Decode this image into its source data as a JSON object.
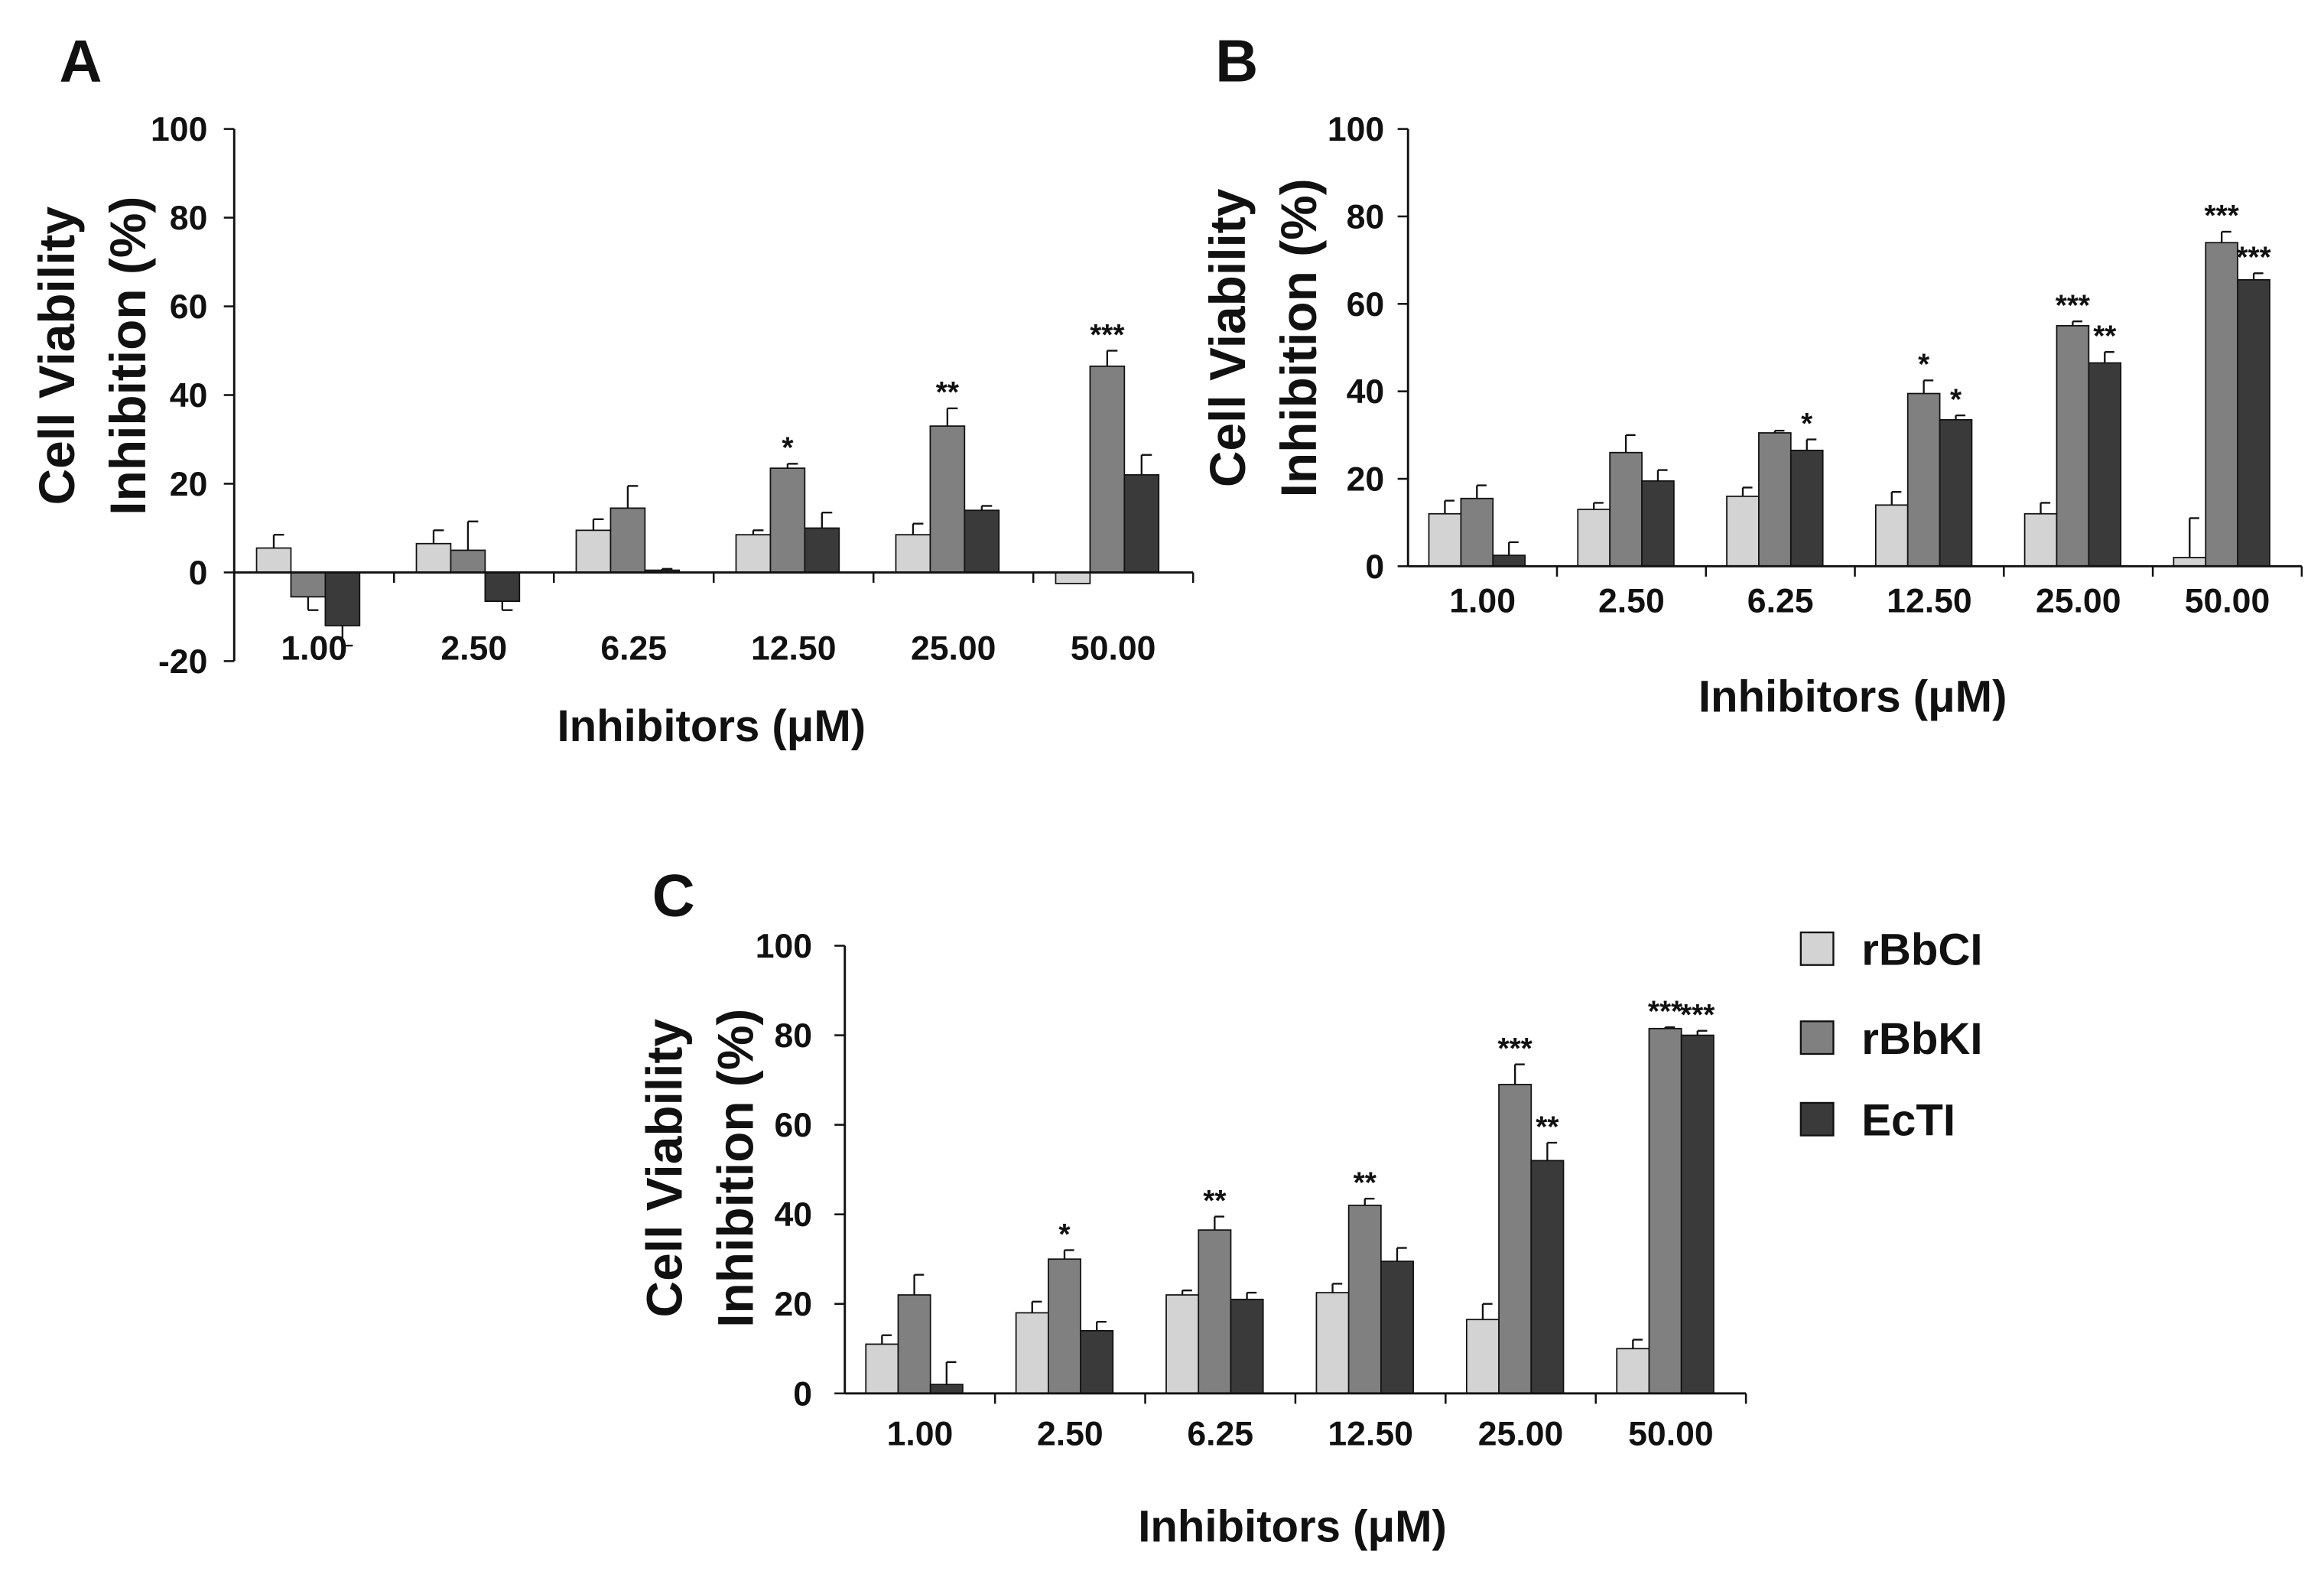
{
  "colors": {
    "rBbCI": "#d3d3d3",
    "rBbKI": "#808080",
    "EcTI": "#3a3a3a",
    "axis": "#111111"
  },
  "legend": {
    "items": [
      {
        "label": "rBbCI",
        "color": "#d3d3d3"
      },
      {
        "label": "rBbKI",
        "color": "#808080"
      },
      {
        "label": "EcTI",
        "color": "#3a3a3a"
      }
    ]
  },
  "chart_data": [
    {
      "panel": "A",
      "type": "bar",
      "ylabel_lines": [
        "Cell Viability",
        "Inhibition (%)"
      ],
      "xlabel": "Inhibitors (μM)",
      "categories": [
        "1.00",
        "2.50",
        "6.25",
        "12.50",
        "25.00",
        "50.00"
      ],
      "ylim": [
        -20,
        100
      ],
      "yticks": [
        -20,
        0,
        20,
        40,
        60,
        80,
        100
      ],
      "series": [
        {
          "name": "rBbCI",
          "values": [
            5.5,
            6.5,
            9.5,
            8.5,
            8.5,
            -2.5
          ],
          "errors": [
            3,
            3,
            2.5,
            1,
            2.5,
            0
          ],
          "sig": [
            "",
            "",
            "",
            "",
            "",
            ""
          ]
        },
        {
          "name": "rBbKI",
          "values": [
            -5.5,
            5,
            14.5,
            23.5,
            33,
            46.5
          ],
          "errors": [
            3,
            6.5,
            5,
            1,
            4,
            3.5
          ],
          "sig": [
            "",
            "",
            "",
            "*",
            "**",
            "***"
          ]
        },
        {
          "name": "EcTI",
          "values": [
            -12,
            -6.5,
            0.5,
            10,
            14,
            22
          ],
          "errors": [
            4.5,
            2,
            0.3,
            3.5,
            1,
            4.5
          ],
          "sig": [
            "",
            "",
            "",
            "",
            "",
            ""
          ]
        }
      ]
    },
    {
      "panel": "B",
      "type": "bar",
      "ylabel_lines": [
        "Cell Viability",
        "Inhibition (%)"
      ],
      "xlabel": "Inhibitors (μM)",
      "categories": [
        "1.00",
        "2.50",
        "6.25",
        "12.50",
        "25.00",
        "50.00"
      ],
      "ylim": [
        0,
        100
      ],
      "yticks": [
        0,
        20,
        40,
        60,
        80,
        100
      ],
      "series": [
        {
          "name": "rBbCI",
          "values": [
            12,
            13,
            16,
            14,
            12,
            2
          ],
          "errors": [
            3,
            1.5,
            2,
            3,
            2.5,
            9
          ],
          "sig": [
            "",
            "",
            "",
            "",
            "",
            ""
          ]
        },
        {
          "name": "rBbKI",
          "values": [
            15.5,
            26,
            30.5,
            39.5,
            55,
            74
          ],
          "errors": [
            3,
            4,
            0.5,
            3,
            1,
            2.5
          ],
          "sig": [
            "",
            "",
            "",
            "*",
            "***",
            "***"
          ]
        },
        {
          "name": "EcTI",
          "values": [
            2.5,
            19.5,
            26.5,
            33.5,
            46.5,
            65.5
          ],
          "errors": [
            3,
            2.5,
            2.5,
            1,
            2.5,
            1.5
          ],
          "sig": [
            "",
            "",
            "*",
            "*",
            "**",
            "***"
          ]
        }
      ]
    },
    {
      "panel": "C",
      "type": "bar",
      "ylabel_lines": [
        "Cell Viability",
        "Inhibition (%)"
      ],
      "xlabel": "Inhibitors (μM)",
      "categories": [
        "1.00",
        "2.50",
        "6.25",
        "12.50",
        "25.00",
        "50.00"
      ],
      "ylim": [
        0,
        100
      ],
      "yticks": [
        0,
        20,
        40,
        60,
        80,
        100
      ],
      "series": [
        {
          "name": "rBbCI",
          "values": [
            11,
            18,
            22,
            22.5,
            16.5,
            10
          ],
          "errors": [
            2,
            2.5,
            1,
            2,
            3.5,
            2
          ],
          "sig": [
            "",
            "",
            "",
            "",
            "",
            ""
          ]
        },
        {
          "name": "rBbKI",
          "values": [
            22,
            30,
            36.5,
            42,
            69,
            81.5
          ],
          "errors": [
            4.5,
            2,
            3,
            1.5,
            4.5,
            0.3
          ],
          "sig": [
            "",
            "*",
            "**",
            "**",
            "***",
            "***"
          ]
        },
        {
          "name": "EcTI",
          "values": [
            2,
            14,
            21,
            29.5,
            52,
            80
          ],
          "errors": [
            5,
            2,
            1.5,
            3,
            4,
            1
          ],
          "sig": [
            "",
            "",
            "",
            "",
            "**",
            "***"
          ]
        }
      ]
    }
  ]
}
